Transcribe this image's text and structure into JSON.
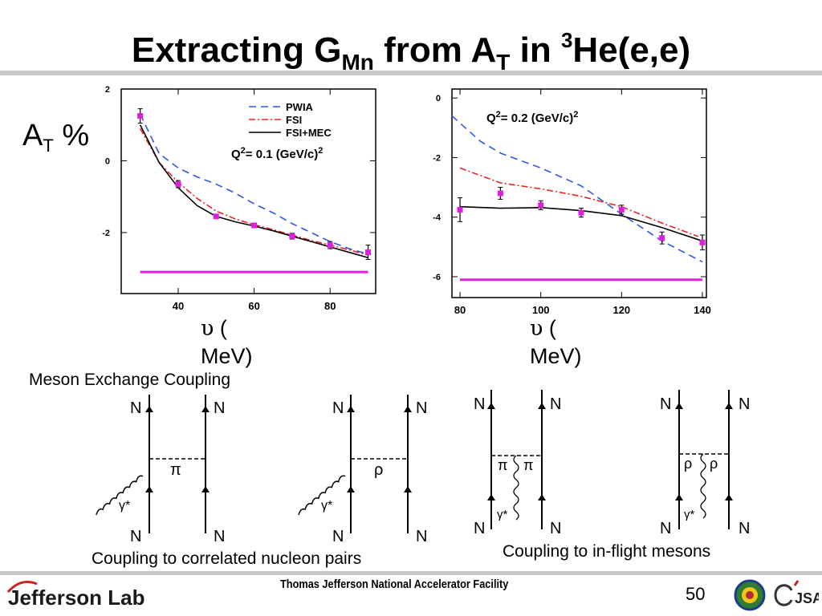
{
  "slide": {
    "title_main": "Extracting G",
    "title_sub": "Mn",
    "title_mid": " from A",
    "title_sub2": "T",
    "title_mid2": " in ",
    "title_sup": "3",
    "title_end": "He(e,e)",
    "at_label_main": "A",
    "at_label_sub": "T",
    "at_label_end": " %",
    "nu_symbol": "υ",
    "nu_paren": " (",
    "nu_unit": "MeV)",
    "mec_heading": "Meson Exchange Coupling",
    "caption_correlated": "Coupling to correlated nucleon pairs",
    "caption_inflight": "Coupling to in-flight mesons",
    "footer": "Thomas Jefferson National Accelerator Facility",
    "page_number": "50",
    "brand": "Jefferson Lab",
    "jsa_logo": "JSA"
  },
  "diagrams": {
    "nucleon": "N",
    "photon": "γ*",
    "pion": "π",
    "rho": "ρ"
  },
  "colors": {
    "pwia": "#2f55e8",
    "fsi": "#e8262a",
    "fsi_mec": "#000000",
    "data_points": "#e01ee0"
  },
  "chart_data": [
    {
      "type": "line",
      "title": "Q2= 0.1 (GeV/c)2",
      "xlabel": "υ (MeV)",
      "ylabel": "AT %",
      "xlim": [
        25,
        92
      ],
      "ylim": [
        -3.7,
        2.0
      ],
      "xticks": [
        "40",
        "60",
        "80"
      ],
      "yticks": [
        "2",
        "0",
        "-2"
      ],
      "legend_position": "top-right",
      "series": [
        {
          "name": "PWIA",
          "style": "dashed",
          "x": [
            30,
            35,
            40,
            45,
            50,
            55,
            60,
            65,
            70,
            75,
            80,
            85,
            90
          ],
          "y": [
            1.3,
            0.2,
            -0.2,
            -0.45,
            -0.65,
            -0.9,
            -1.2,
            -1.45,
            -1.75,
            -2.0,
            -2.25,
            -2.45,
            -2.6
          ]
        },
        {
          "name": "FSI",
          "style": "dash-dot",
          "x": [
            30,
            35,
            40,
            45,
            50,
            55,
            60,
            65,
            70,
            75,
            80,
            85,
            90
          ],
          "y": [
            0.9,
            -0.05,
            -0.6,
            -1.05,
            -1.4,
            -1.62,
            -1.78,
            -1.92,
            -2.07,
            -2.22,
            -2.35,
            -2.48,
            -2.63
          ]
        },
        {
          "name": "FSI+MEC",
          "style": "solid",
          "x": [
            30,
            35,
            40,
            45,
            50,
            55,
            60,
            65,
            70,
            75,
            80,
            85,
            90
          ],
          "y": [
            1.0,
            -0.05,
            -0.75,
            -1.25,
            -1.55,
            -1.7,
            -1.82,
            -1.95,
            -2.1,
            -2.25,
            -2.4,
            -2.55,
            -2.7
          ]
        },
        {
          "name": "data",
          "style": "points",
          "x": [
            30,
            40,
            50,
            60,
            70,
            80,
            90
          ],
          "y": [
            1.25,
            -0.65,
            -1.55,
            -1.8,
            -2.1,
            -2.35,
            -2.55
          ],
          "err": [
            0.2,
            0.1,
            0.06,
            0.06,
            0.08,
            0.1,
            0.2
          ]
        },
        {
          "name": "",
          "style": "baseline",
          "x": [
            30,
            90
          ],
          "y": [
            -3.1,
            -3.1
          ]
        }
      ]
    },
    {
      "type": "line",
      "title": "Q2= 0.2 (GeV/c)2",
      "xlabel": "υ (MeV)",
      "xlim": [
        78,
        141
      ],
      "ylim": [
        -6.7,
        0.3
      ],
      "xticks": [
        "80",
        "100",
        "120",
        "140"
      ],
      "yticks": [
        "0",
        "-2",
        "-4",
        "-6"
      ],
      "series": [
        {
          "name": "PWIA",
          "style": "dashed",
          "x": [
            78,
            85,
            90,
            100,
            110,
            120,
            130,
            140
          ],
          "y": [
            -0.6,
            -1.45,
            -1.85,
            -2.35,
            -2.95,
            -3.9,
            -4.8,
            -5.5
          ]
        },
        {
          "name": "FSI",
          "style": "dash-dot",
          "x": [
            80,
            90,
            100,
            110,
            120,
            130,
            139
          ],
          "y": [
            -2.35,
            -2.85,
            -3.05,
            -3.3,
            -3.65,
            -4.2,
            -4.65
          ]
        },
        {
          "name": "FSI+MEC",
          "style": "solid",
          "x": [
            80,
            90,
            100,
            110,
            120,
            130,
            140
          ],
          "y": [
            -3.65,
            -3.7,
            -3.68,
            -3.78,
            -3.95,
            -4.35,
            -4.8
          ]
        },
        {
          "name": "data",
          "style": "points",
          "x": [
            80,
            90,
            100,
            110,
            120,
            130,
            140
          ],
          "y": [
            -3.75,
            -3.2,
            -3.6,
            -3.85,
            -3.75,
            -4.7,
            -4.85
          ],
          "err": [
            0.4,
            0.2,
            0.15,
            0.15,
            0.15,
            0.2,
            0.25
          ]
        },
        {
          "name": "",
          "style": "baseline",
          "x": [
            80,
            140
          ],
          "y": [
            -6.1,
            -6.1
          ]
        }
      ]
    }
  ]
}
